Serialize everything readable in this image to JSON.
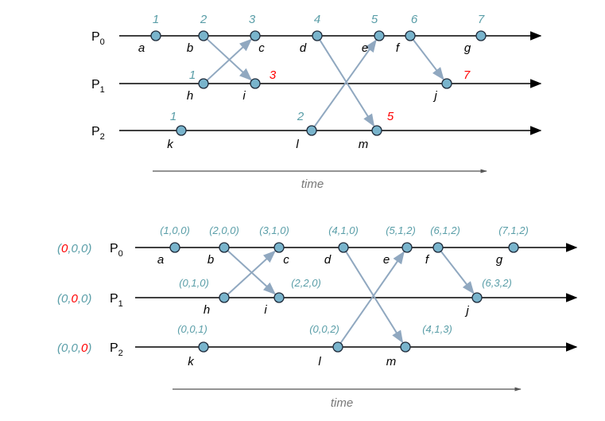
{
  "colors": {
    "timestamp": "#5a9ea8",
    "highlight": "#ff0000",
    "event_fill": "#79b4cc",
    "message": "#90a8c0",
    "axis": "#000000",
    "time_axis": "#555555"
  },
  "top": {
    "processes": [
      {
        "name": "P",
        "sub": "0"
      },
      {
        "name": "P",
        "sub": "1"
      },
      {
        "name": "P",
        "sub": "2"
      }
    ],
    "events": [
      {
        "id": "a",
        "proc": 0,
        "ts": "1",
        "red": false
      },
      {
        "id": "b",
        "proc": 0,
        "ts": "2",
        "red": false
      },
      {
        "id": "c",
        "proc": 0,
        "ts": "3",
        "red": false
      },
      {
        "id": "d",
        "proc": 0,
        "ts": "4",
        "red": false
      },
      {
        "id": "e",
        "proc": 0,
        "ts": "5",
        "red": false
      },
      {
        "id": "f",
        "proc": 0,
        "ts": "6",
        "red": false
      },
      {
        "id": "g",
        "proc": 0,
        "ts": "7",
        "red": false
      },
      {
        "id": "h",
        "proc": 1,
        "ts": "1",
        "red": false
      },
      {
        "id": "i",
        "proc": 1,
        "ts": "3",
        "red": true
      },
      {
        "id": "j",
        "proc": 1,
        "ts": "7",
        "red": true
      },
      {
        "id": "k",
        "proc": 2,
        "ts": "1",
        "red": false
      },
      {
        "id": "l",
        "proc": 2,
        "ts": "2",
        "red": false
      },
      {
        "id": "m",
        "proc": 2,
        "ts": "5",
        "red": true
      }
    ],
    "messages": [
      [
        "b",
        "i"
      ],
      [
        "h",
        "c"
      ],
      [
        "d",
        "m"
      ],
      [
        "l",
        "e"
      ],
      [
        "f",
        "j"
      ]
    ],
    "time_label": "time"
  },
  "bottom": {
    "processes": [
      {
        "name": "P",
        "sub": "0",
        "init": [
          "0",
          "0",
          "0"
        ],
        "red_index": 0
      },
      {
        "name": "P",
        "sub": "1",
        "init": [
          "0",
          "0",
          "0"
        ],
        "red_index": 1
      },
      {
        "name": "P",
        "sub": "2",
        "init": [
          "0",
          "0",
          "0"
        ],
        "red_index": 2
      }
    ],
    "events": [
      {
        "id": "a",
        "proc": 0,
        "vt": "(1,0,0)"
      },
      {
        "id": "b",
        "proc": 0,
        "vt": "(2,0,0)"
      },
      {
        "id": "c",
        "proc": 0,
        "vt": "(3,1,0)"
      },
      {
        "id": "d",
        "proc": 0,
        "vt": "(4,1,0)"
      },
      {
        "id": "e",
        "proc": 0,
        "vt": "(5,1,2)"
      },
      {
        "id": "f",
        "proc": 0,
        "vt": "(6,1,2)"
      },
      {
        "id": "g",
        "proc": 0,
        "vt": "(7,1,2)"
      },
      {
        "id": "h",
        "proc": 1,
        "vt": "(0,1,0)"
      },
      {
        "id": "i",
        "proc": 1,
        "vt": "(2,2,0)"
      },
      {
        "id": "j",
        "proc": 1,
        "vt": "(6,3,2)"
      },
      {
        "id": "k",
        "proc": 2,
        "vt": "(0,0,1)"
      },
      {
        "id": "l",
        "proc": 2,
        "vt": "(0,0,2)"
      },
      {
        "id": "m",
        "proc": 2,
        "vt": "(4,1,3)"
      }
    ],
    "messages": [
      [
        "b",
        "i"
      ],
      [
        "h",
        "c"
      ],
      [
        "d",
        "m"
      ],
      [
        "l",
        "e"
      ],
      [
        "f",
        "j"
      ]
    ],
    "time_label": "time"
  }
}
